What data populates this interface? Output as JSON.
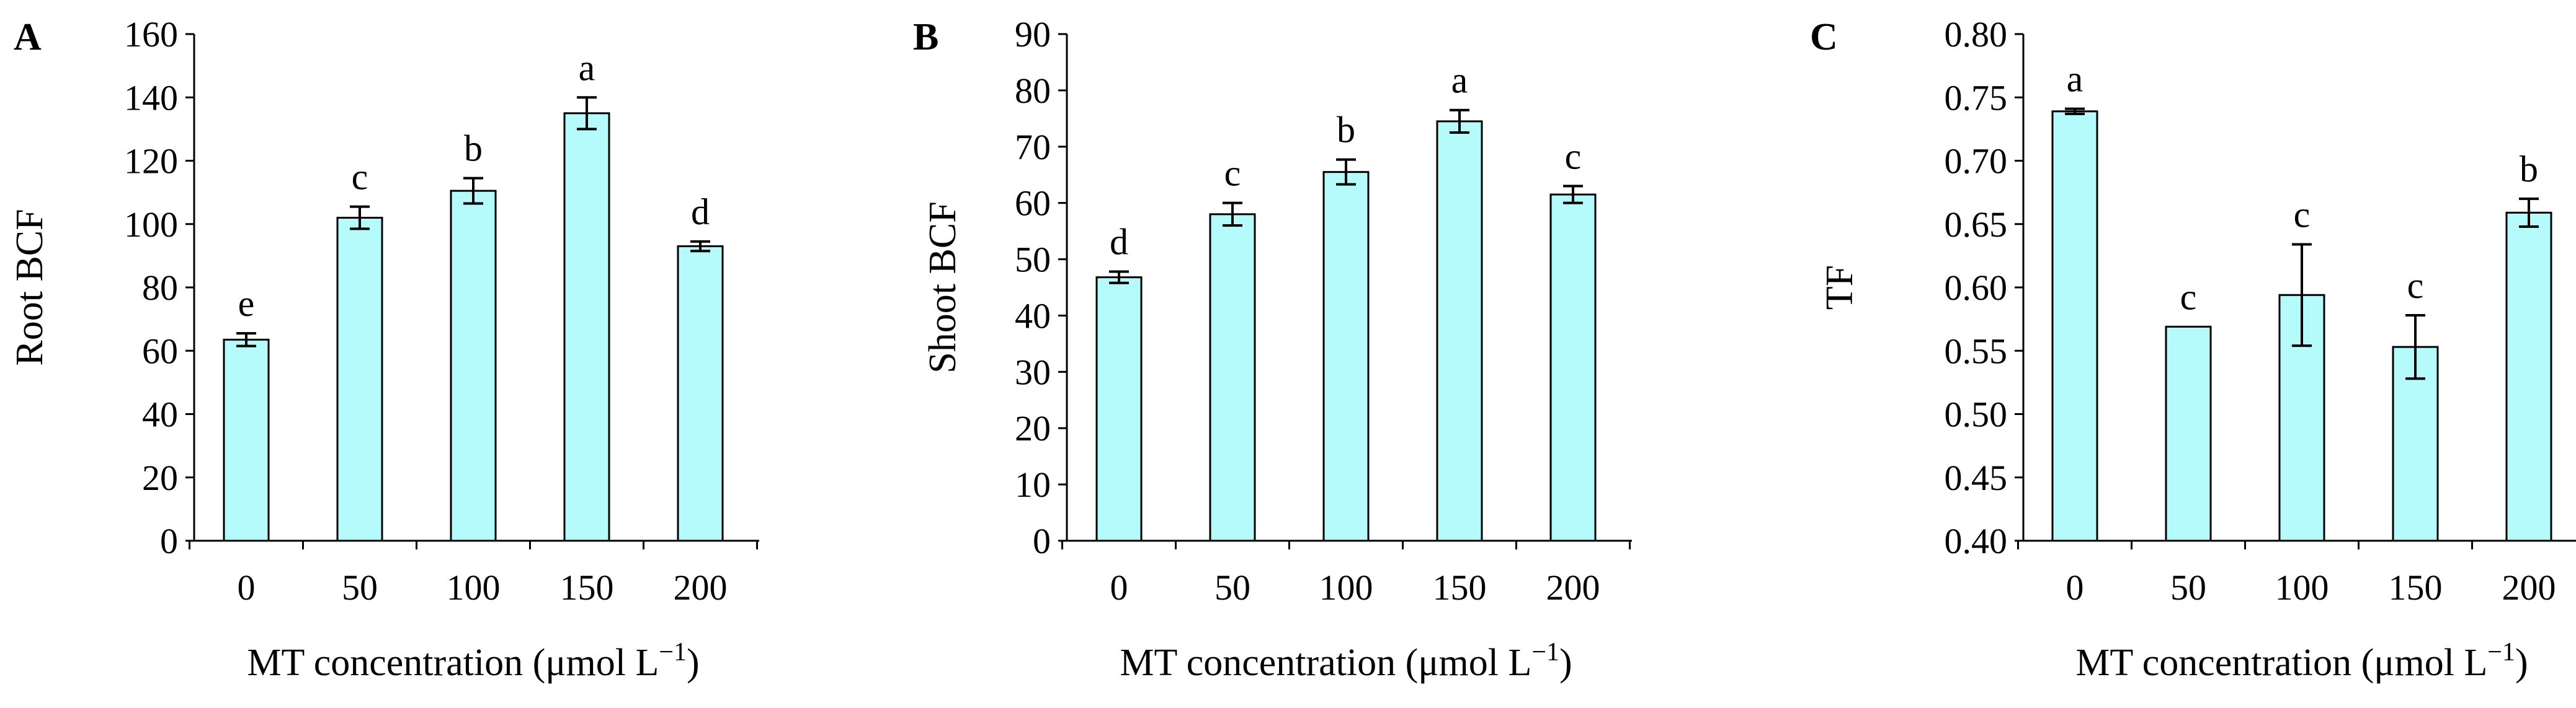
{
  "figure": {
    "xlabel_main": "MT concentration (μmol L",
    "xlabel_sup": "−1",
    "xlabel_close": ")",
    "bar_fill": "#b5fbfb",
    "bar_stroke": "#000000"
  },
  "chart_data": [
    {
      "type": "bar",
      "panel": "A",
      "categories": [
        "0",
        "50",
        "100",
        "150",
        "200"
      ],
      "values": [
        63.5,
        102,
        110.5,
        135,
        93
      ],
      "errors": [
        2,
        3.5,
        4,
        5,
        1.5
      ],
      "letters": [
        "e",
        "c",
        "b",
        "a",
        "d"
      ],
      "ylabel": "Root BCF",
      "ylim": [
        0,
        160
      ],
      "yticks": [
        "0",
        "20",
        "40",
        "60",
        "80",
        "100",
        "120",
        "140",
        "160"
      ]
    },
    {
      "type": "bar",
      "panel": "B",
      "categories": [
        "0",
        "50",
        "100",
        "150",
        "200"
      ],
      "values": [
        46.8,
        58,
        65.5,
        74.5,
        61.5
      ],
      "errors": [
        1,
        2,
        2.2,
        2,
        1.5
      ],
      "letters": [
        "d",
        "c",
        "b",
        "a",
        "c"
      ],
      "ylabel": "Shoot BCF",
      "ylim": [
        0,
        90
      ],
      "yticks": [
        "0",
        "10",
        "20",
        "30",
        "40",
        "50",
        "60",
        "70",
        "80",
        "90"
      ]
    },
    {
      "type": "bar",
      "panel": "C",
      "categories": [
        "0",
        "50",
        "100",
        "150",
        "200"
      ],
      "values": [
        0.739,
        0.569,
        0.594,
        0.553,
        0.659
      ],
      "errors": [
        0.002,
        0,
        0.04,
        0.025,
        0.011
      ],
      "letters": [
        "a",
        "c",
        "c",
        "c",
        "b"
      ],
      "ylabel": "TF",
      "ylim": [
        0.4,
        0.8
      ],
      "yticks": [
        "0.40",
        "0.45",
        "0.50",
        "0.55",
        "0.60",
        "0.65",
        "0.70",
        "0.75",
        "0.80"
      ]
    }
  ]
}
